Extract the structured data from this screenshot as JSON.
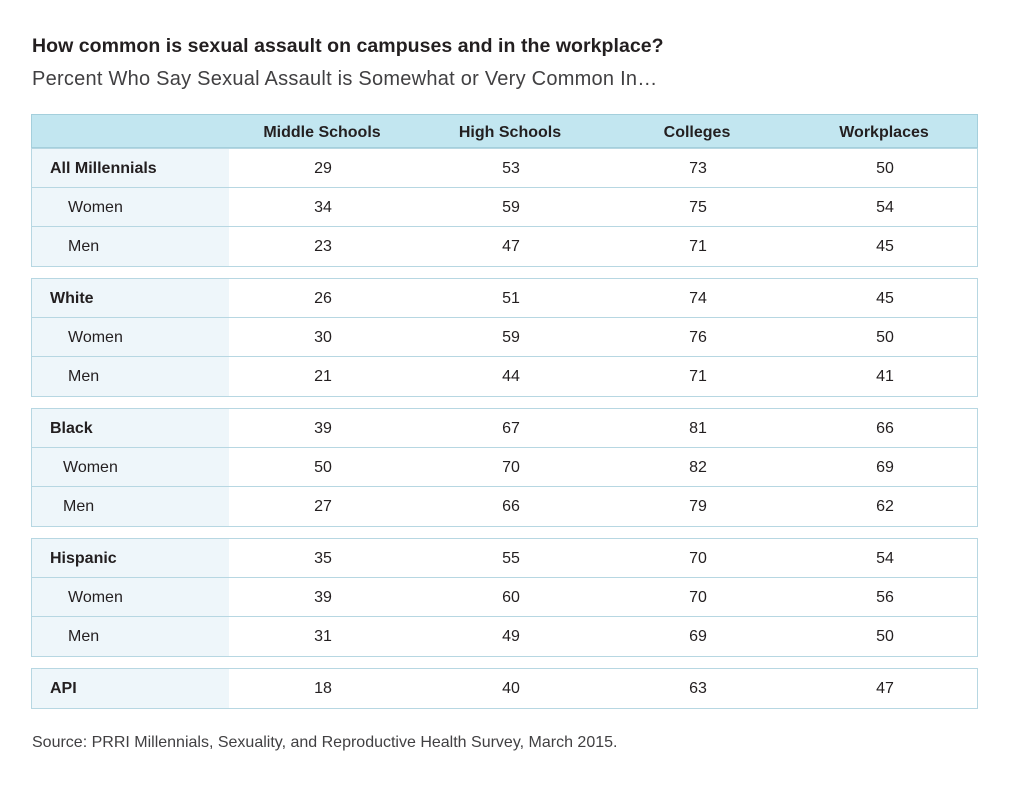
{
  "chart_data": {
    "type": "table",
    "title": "How common is sexual assault on campuses and in the workplace?",
    "subtitle": "Percent Who Say Sexual Assault is Somewhat or Very Common In…",
    "columns": [
      "Middle Schools",
      "High Schools",
      "Colleges",
      "Workplaces"
    ],
    "groups": [
      {
        "rows": [
          {
            "label": "All Millennials",
            "main": true,
            "values": [
              29,
              53,
              73,
              50
            ]
          },
          {
            "label": "Women",
            "main": false,
            "values": [
              34,
              59,
              75,
              54
            ]
          },
          {
            "label": "Men",
            "main": false,
            "values": [
              23,
              47,
              71,
              45
            ]
          }
        ]
      },
      {
        "rows": [
          {
            "label": "White",
            "main": true,
            "values": [
              26,
              51,
              74,
              45
            ]
          },
          {
            "label": "Women",
            "main": false,
            "values": [
              30,
              59,
              76,
              50
            ]
          },
          {
            "label": "Men",
            "main": false,
            "values": [
              21,
              44,
              71,
              41
            ]
          }
        ]
      },
      {
        "rows": [
          {
            "label": "Black",
            "main": true,
            "values": [
              39,
              67,
              81,
              66
            ]
          },
          {
            "label": "Women",
            "main": false,
            "values": [
              50,
              70,
              82,
              69
            ]
          },
          {
            "label": "Men",
            "main": false,
            "values": [
              27,
              66,
              79,
              62
            ]
          }
        ]
      },
      {
        "rows": [
          {
            "label": "Hispanic",
            "main": true,
            "values": [
              35,
              55,
              70,
              54
            ]
          },
          {
            "label": "Women",
            "main": false,
            "values": [
              39,
              60,
              70,
              56
            ]
          },
          {
            "label": "Men",
            "main": false,
            "values": [
              31,
              49,
              69,
              50
            ]
          }
        ]
      },
      {
        "rows": [
          {
            "label": "API",
            "main": true,
            "values": [
              18,
              40,
              63,
              47
            ]
          }
        ]
      }
    ],
    "source": "Source: PRRI Millennials, Sexuality, and Reproductive Health Survey, March 2015.",
    "colors": {
      "header": "#c2e6f0",
      "label_column": "#eef6fa",
      "rule": "#b7d7e2"
    }
  }
}
